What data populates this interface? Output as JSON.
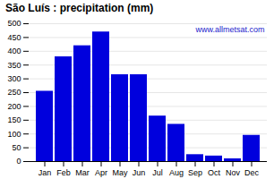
{
  "chart_data": {
    "type": "bar",
    "title": "São Luís : precipitation (mm)",
    "categories": [
      "Jan",
      "Feb",
      "Mar",
      "Apr",
      "May",
      "Jun",
      "Jul",
      "Aug",
      "Sep",
      "Oct",
      "Nov",
      "Dec"
    ],
    "values": [
      255,
      380,
      420,
      470,
      315,
      315,
      165,
      135,
      25,
      20,
      10,
      95
    ],
    "color": "#0000dd",
    "ylim": [
      0,
      500
    ],
    "yticks": [
      0,
      50,
      100,
      150,
      200,
      250,
      300,
      350,
      400,
      450,
      500
    ],
    "grid": true,
    "annotations": [
      "www.allmetsat.com"
    ]
  }
}
